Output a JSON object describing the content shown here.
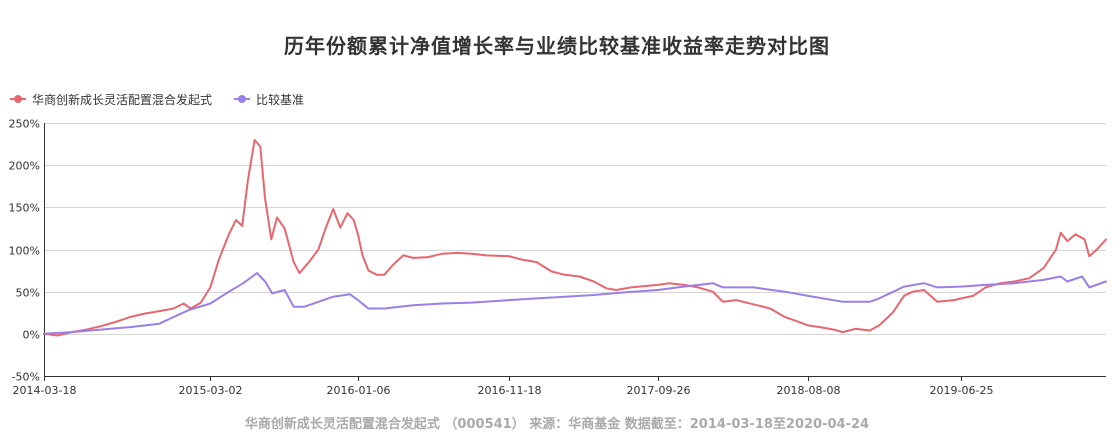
{
  "chart_data": {
    "type": "line",
    "title": "历年份额累计净值增长率与业绩比较基准收益率走势对比图",
    "x_axis": {
      "start": "2014-03-18",
      "end": "2020-04-24",
      "tick_labels": [
        "2014-03-18",
        "2015-03-02",
        "2016-01-06",
        "2016-11-18",
        "2017-09-26",
        "2018-08-08",
        "2019-06-25"
      ]
    },
    "y_axis": {
      "min": -50,
      "max": 250,
      "tick_values": [
        -50,
        0,
        50,
        100,
        150,
        200,
        250
      ],
      "tick_labels": [
        "-50%",
        "0%",
        "50%",
        "100%",
        "150%",
        "200%",
        "250%"
      ],
      "grid": true
    },
    "legend": {
      "position": "top-left"
    },
    "series": [
      {
        "name": "华商创新成长灵活配置混合发起式",
        "color": "#e8676f",
        "points": [
          [
            "2014-03-18",
            0
          ],
          [
            "2014-04-15",
            -2
          ],
          [
            "2014-05-15",
            2
          ],
          [
            "2014-06-15",
            5
          ],
          [
            "2014-07-15",
            9
          ],
          [
            "2014-08-15",
            14
          ],
          [
            "2014-09-15",
            20
          ],
          [
            "2014-10-15",
            24
          ],
          [
            "2014-11-15",
            27
          ],
          [
            "2014-12-15",
            30
          ],
          [
            "2015-01-05",
            36
          ],
          [
            "2015-01-20",
            30
          ],
          [
            "2015-02-10",
            37
          ],
          [
            "2015-03-02",
            55
          ],
          [
            "2015-03-20",
            88
          ],
          [
            "2015-04-10",
            118
          ],
          [
            "2015-04-25",
            135
          ],
          [
            "2015-05-08",
            128
          ],
          [
            "2015-05-20",
            182
          ],
          [
            "2015-06-03",
            230
          ],
          [
            "2015-06-15",
            222
          ],
          [
            "2015-06-25",
            160
          ],
          [
            "2015-07-08",
            112
          ],
          [
            "2015-07-20",
            138
          ],
          [
            "2015-08-05",
            125
          ],
          [
            "2015-08-24",
            85
          ],
          [
            "2015-09-05",
            72
          ],
          [
            "2015-09-25",
            85
          ],
          [
            "2015-10-15",
            100
          ],
          [
            "2015-10-30",
            125
          ],
          [
            "2015-11-15",
            148
          ],
          [
            "2015-11-30",
            126
          ],
          [
            "2015-12-15",
            143
          ],
          [
            "2015-12-28",
            135
          ],
          [
            "2016-01-06",
            118
          ],
          [
            "2016-01-15",
            94
          ],
          [
            "2016-01-28",
            75
          ],
          [
            "2016-02-15",
            70
          ],
          [
            "2016-03-01",
            70
          ],
          [
            "2016-03-20",
            82
          ],
          [
            "2016-04-10",
            93
          ],
          [
            "2016-05-01",
            90
          ],
          [
            "2016-06-01",
            91
          ],
          [
            "2016-07-01",
            95
          ],
          [
            "2016-08-01",
            96
          ],
          [
            "2016-09-01",
            95
          ],
          [
            "2016-10-01",
            93
          ],
          [
            "2016-11-18",
            92
          ],
          [
            "2016-12-15",
            88
          ],
          [
            "2017-01-15",
            85
          ],
          [
            "2017-02-15",
            74
          ],
          [
            "2017-03-15",
            70
          ],
          [
            "2017-04-15",
            68
          ],
          [
            "2017-05-15",
            62
          ],
          [
            "2017-06-10",
            54
          ],
          [
            "2017-07-01",
            52
          ],
          [
            "2017-08-01",
            55
          ],
          [
            "2017-09-26",
            58
          ],
          [
            "2017-10-20",
            60
          ],
          [
            "2017-11-20",
            58
          ],
          [
            "2017-12-20",
            55
          ],
          [
            "2018-01-20",
            50
          ],
          [
            "2018-02-10",
            38
          ],
          [
            "2018-03-10",
            40
          ],
          [
            "2018-04-15",
            35
          ],
          [
            "2018-05-20",
            30
          ],
          [
            "2018-06-20",
            20
          ],
          [
            "2018-07-15",
            15
          ],
          [
            "2018-08-08",
            10
          ],
          [
            "2018-09-01",
            8
          ],
          [
            "2018-10-01",
            5
          ],
          [
            "2018-10-20",
            2
          ],
          [
            "2018-11-15",
            6
          ],
          [
            "2018-12-15",
            4
          ],
          [
            "2019-01-04",
            10
          ],
          [
            "2019-02-01",
            25
          ],
          [
            "2019-02-25",
            45
          ],
          [
            "2019-03-15",
            50
          ],
          [
            "2019-04-08",
            52
          ],
          [
            "2019-05-06",
            38
          ],
          [
            "2019-06-10",
            40
          ],
          [
            "2019-06-25",
            42
          ],
          [
            "2019-07-20",
            45
          ],
          [
            "2019-08-15",
            55
          ],
          [
            "2019-09-15",
            60
          ],
          [
            "2019-10-15",
            62
          ],
          [
            "2019-11-15",
            66
          ],
          [
            "2019-12-15",
            78
          ],
          [
            "2020-01-10",
            100
          ],
          [
            "2020-01-20",
            120
          ],
          [
            "2020-02-03",
            110
          ],
          [
            "2020-02-20",
            118
          ],
          [
            "2020-03-10",
            112
          ],
          [
            "2020-03-20",
            92
          ],
          [
            "2020-04-05",
            100
          ],
          [
            "2020-04-24",
            112
          ]
        ]
      },
      {
        "name": "比较基准",
        "color": "#9a7fe8",
        "points": [
          [
            "2014-03-18",
            0
          ],
          [
            "2014-05-15",
            2
          ],
          [
            "2014-07-15",
            5
          ],
          [
            "2014-09-15",
            8
          ],
          [
            "2014-11-15",
            12
          ],
          [
            "2014-12-15",
            20
          ],
          [
            "2015-01-15",
            28
          ],
          [
            "2015-03-02",
            36
          ],
          [
            "2015-04-10",
            50
          ],
          [
            "2015-05-10",
            60
          ],
          [
            "2015-06-08",
            72
          ],
          [
            "2015-06-25",
            62
          ],
          [
            "2015-07-10",
            48
          ],
          [
            "2015-08-05",
            52
          ],
          [
            "2015-08-24",
            32
          ],
          [
            "2015-09-15",
            32
          ],
          [
            "2015-10-15",
            38
          ],
          [
            "2015-11-15",
            44
          ],
          [
            "2015-12-20",
            47
          ],
          [
            "2016-01-06",
            40
          ],
          [
            "2016-01-28",
            30
          ],
          [
            "2016-03-01",
            30
          ],
          [
            "2016-05-01",
            34
          ],
          [
            "2016-07-01",
            36
          ],
          [
            "2016-09-01",
            37
          ],
          [
            "2016-11-18",
            40
          ],
          [
            "2017-01-15",
            42
          ],
          [
            "2017-03-15",
            44
          ],
          [
            "2017-05-15",
            46
          ],
          [
            "2017-07-15",
            49
          ],
          [
            "2017-09-26",
            52
          ],
          [
            "2017-11-20",
            56
          ],
          [
            "2018-01-20",
            60
          ],
          [
            "2018-02-10",
            55
          ],
          [
            "2018-04-15",
            55
          ],
          [
            "2018-06-20",
            50
          ],
          [
            "2018-08-08",
            45
          ],
          [
            "2018-10-20",
            38
          ],
          [
            "2018-12-15",
            38
          ],
          [
            "2019-01-04",
            42
          ],
          [
            "2019-02-25",
            56
          ],
          [
            "2019-04-08",
            60
          ],
          [
            "2019-05-06",
            55
          ],
          [
            "2019-06-25",
            56
          ],
          [
            "2019-08-15",
            58
          ],
          [
            "2019-10-15",
            60
          ],
          [
            "2019-12-15",
            64
          ],
          [
            "2020-01-20",
            68
          ],
          [
            "2020-02-03",
            62
          ],
          [
            "2020-03-05",
            68
          ],
          [
            "2020-03-20",
            55
          ],
          [
            "2020-04-24",
            62
          ]
        ]
      }
    ],
    "footer": "华商创新成长灵活配置混合发起式 （000541） 来源：华商基金 数据截至：2014-03-18至2020-04-24"
  }
}
